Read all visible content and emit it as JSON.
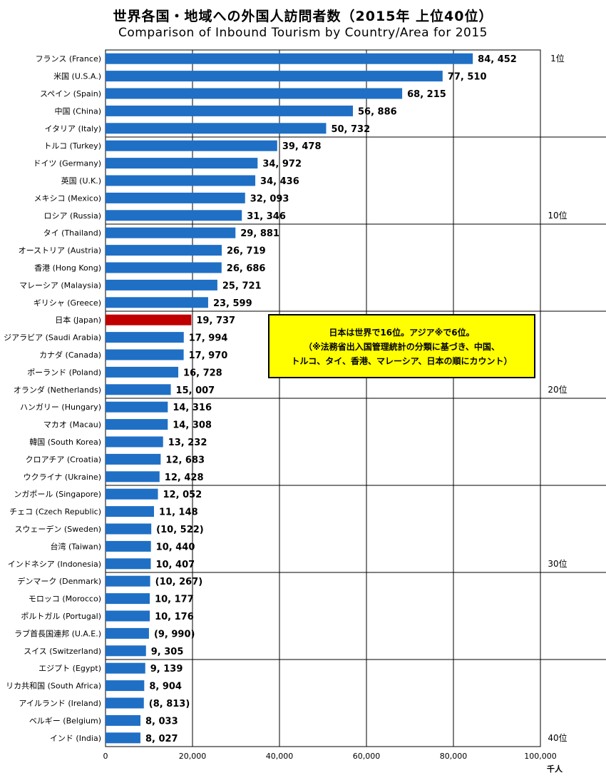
{
  "title": "世界各国・地域への外国人訪問者数（2015年 上位40位）",
  "subtitle": "Comparison of Inbound Tourism by Country/Area for 2015",
  "colors": {
    "bar": "#1f6fc5",
    "highlight": "#c00000"
  },
  "chart_data": {
    "type": "bar",
    "orientation": "horizontal",
    "categories": [
      "フランス (France)",
      "米国 (U.S.A.)",
      "スペイン (Spain)",
      "中国 (China)",
      "イタリア (Italy)",
      "トルコ (Turkey)",
      "ドイツ (Germany)",
      "英国 (U.K.)",
      "メキシコ (Mexico)",
      "ロシア (Russia)",
      "タイ (Thailand)",
      "オーストリア (Austria)",
      "香港 (Hong Kong)",
      "マレーシア (Malaysia)",
      "ギリシャ (Greece)",
      "日本 (Japan)",
      "ジアラビア (Saudi Arabia)",
      "カナダ (Canada)",
      "ポーランド (Poland)",
      "オランダ (Netherlands)",
      "ハンガリー (Hungary)",
      "マカオ (Macau)",
      "韓国 (South Korea)",
      "クロアチア (Croatia)",
      "ウクライナ (Ukraine)",
      "ンガポール (Singapore)",
      "チェコ (Czech Republic)",
      "スウェーデン (Sweden)",
      "台湾 (Taiwan)",
      "インドネシア (Indonesia)",
      "デンマーク (Denmark)",
      "モロッコ (Morocco)",
      "ポルトガル (Portugal)",
      "ラブ首長国連邦 (U.A.E.)",
      "スイス (Switzerland)",
      "エジプト (Egypt)",
      "リカ共和国 (South Africa)",
      "アイルランド (Ireland)",
      "ベルギー (Belgium)",
      "インド (India)"
    ],
    "values": [
      84452,
      77510,
      68215,
      56886,
      50732,
      39478,
      34972,
      34436,
      32093,
      31346,
      29881,
      26719,
      26686,
      25721,
      23599,
      19737,
      17994,
      17970,
      16728,
      15007,
      14316,
      14308,
      13232,
      12683,
      12428,
      12052,
      11148,
      10522,
      10440,
      10407,
      10267,
      10177,
      10176,
      9990,
      9305,
      9139,
      8904,
      8813,
      8033,
      8027
    ],
    "value_labels": [
      "84, 452",
      "77, 510",
      "68, 215",
      "56, 886",
      "50, 732",
      "39, 478",
      "34, 972",
      "34, 436",
      "32, 093",
      "31, 346",
      "29, 881",
      "26, 719",
      "26, 686",
      "25, 721",
      "23, 599",
      "19, 737",
      "17, 994",
      "17, 970",
      "16, 728",
      "15, 007",
      "14, 316",
      "14, 308",
      "13, 232",
      "12, 683",
      "12, 428",
      "12, 052",
      "11, 148",
      "(10, 522)",
      "10, 440",
      "10, 407",
      "(10, 267)",
      "10, 177",
      "10, 176",
      "(9, 990)",
      "9, 305",
      "9, 139",
      "8, 904",
      "(8, 813)",
      "8, 033",
      "8, 027"
    ],
    "highlight_category": "日本 (Japan)",
    "xlim": [
      0,
      100000
    ],
    "xticks": [
      0,
      20000,
      40000,
      60000,
      80000,
      100000
    ],
    "xtick_labels": [
      "0",
      "20,000",
      "40,000",
      "60,000",
      "80,000",
      "100,000"
    ],
    "xunit": "千人",
    "rank_markers": [
      {
        "rank": 1,
        "label": "1位"
      },
      {
        "rank": 10,
        "label": "10位"
      },
      {
        "rank": 20,
        "label": "20位"
      },
      {
        "rank": 30,
        "label": "30位"
      },
      {
        "rank": 40,
        "label": "40位"
      }
    ],
    "grid": true
  },
  "note": {
    "lines": [
      "日本は世界で16位。アジア※で6位。",
      "（※法務省出入国管理統計の分類に基づき、中国、",
      "トルコ、タイ、香港、マレーシア、日本の順にカウント）"
    ]
  }
}
